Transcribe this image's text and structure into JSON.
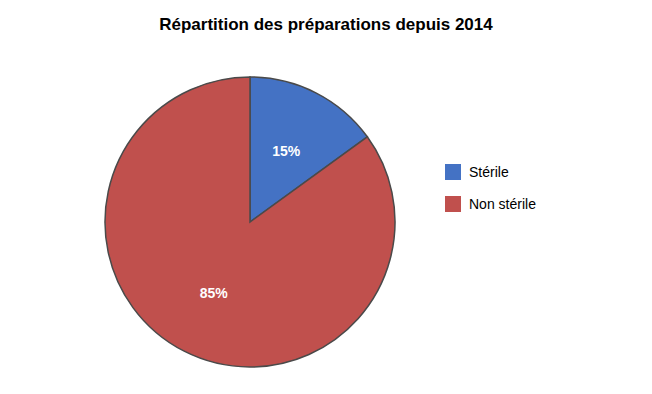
{
  "chart_data": {
    "type": "pie",
    "title": "Répartition des préparations depuis 2014",
    "categories": [
      "Stérile",
      "Non stérile"
    ],
    "values": [
      15,
      85
    ],
    "value_labels": [
      "15%",
      "85%"
    ],
    "colors": [
      "#4472C4",
      "#C0504D"
    ],
    "data_labels": true,
    "legend": "right"
  }
}
